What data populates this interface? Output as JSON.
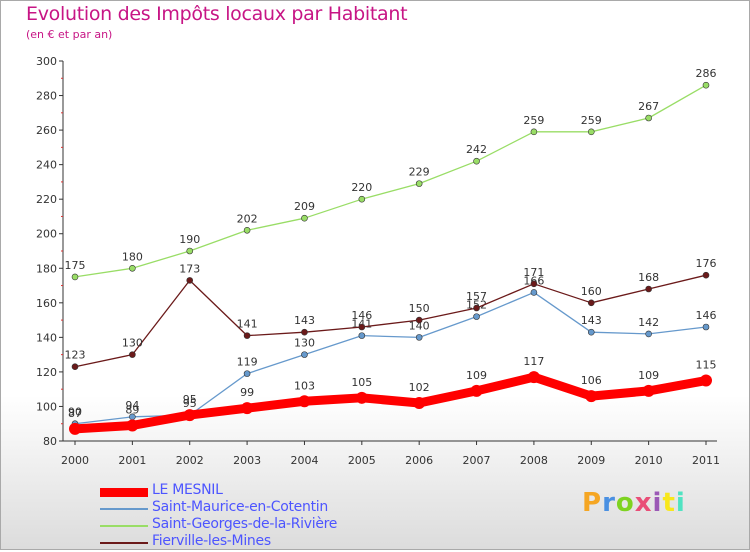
{
  "title": "Evolution des Impôts locaux par Habitant",
  "subtitle": "(en € et par an)",
  "logo": {
    "text": "Proxiti",
    "colors": [
      "#f5a623",
      "#4a90e2",
      "#7ed321",
      "#e94e77",
      "#9b59b6",
      "#f8e71c",
      "#50e3c2"
    ]
  },
  "chart_data": {
    "type": "line",
    "title": "Evolution des Impôts locaux par Habitant",
    "subtitle": "(en € et par an)",
    "x": [
      "2000",
      "2001",
      "2002",
      "2003",
      "2004",
      "2005",
      "2006",
      "2007",
      "2008",
      "2009",
      "2010",
      "2011"
    ],
    "ylim": [
      80,
      300
    ],
    "yticks": [
      80,
      100,
      120,
      140,
      160,
      180,
      200,
      220,
      240,
      260,
      280,
      300
    ],
    "grid": false,
    "legend_position": "bottom-left",
    "series": [
      {
        "name": "LE MESNIL",
        "color": "#ff0000",
        "values": [
          87,
          89,
          95,
          99,
          103,
          105,
          102,
          109,
          117,
          106,
          109,
          115
        ],
        "labels": [
          "87",
          "89",
          "95",
          "99",
          "103",
          "105",
          "102",
          "109",
          "117",
          "106",
          "109",
          "115"
        ],
        "bold": true
      },
      {
        "name": "Saint-Maurice-en-Cotentin",
        "color": "#6699cc",
        "values": [
          90,
          94,
          95,
          119,
          130,
          141,
          140,
          152,
          166,
          143,
          142,
          146
        ],
        "labels": [
          "90",
          "94",
          "95",
          "119",
          "130",
          "141",
          "140",
          "152",
          "166",
          "143",
          "142",
          "146"
        ]
      },
      {
        "name": "Saint-Georges-de-la-Rivière",
        "color": "#99dd66",
        "values": [
          175,
          180,
          190,
          202,
          209,
          220,
          229,
          242,
          259,
          259,
          267,
          286
        ],
        "labels": [
          "175",
          "180",
          "190",
          "202",
          "209",
          "220",
          "229",
          "242",
          "259",
          "259",
          "267",
          "286"
        ]
      },
      {
        "name": "Fierville-les-Mines",
        "color": "#6b1a1a",
        "values": [
          123,
          130,
          173,
          141,
          143,
          146,
          150,
          157,
          171,
          160,
          168,
          176
        ],
        "labels": [
          "123",
          "130",
          "173",
          "141",
          "143",
          "146",
          "150",
          "157",
          "171",
          "160",
          "168",
          "176"
        ]
      }
    ]
  }
}
